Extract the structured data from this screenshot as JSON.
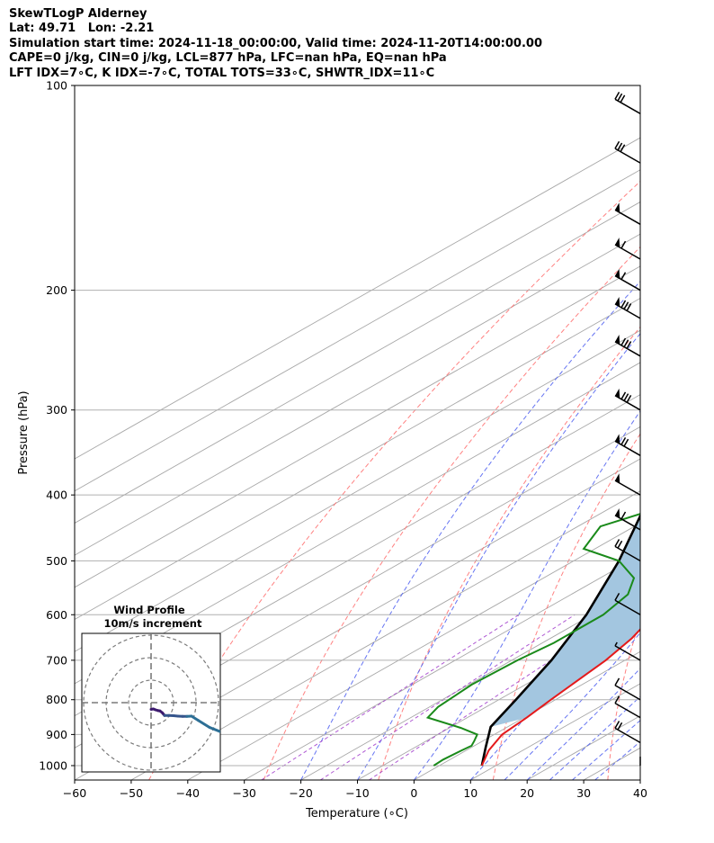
{
  "header": {
    "line1": "SkewTLogP Alderney",
    "line2": "Lat: 49.71   Lon: -2.21",
    "line3": "Simulation start time: 2024-11-18_00:00:00, Valid time: 2024-11-20T14:00:00.00",
    "line4": "CAPE=0 j/kg, CIN=0 j/kg, LCL=877 hPa, LFC=nan hPa, EQ=nan hPa",
    "line5": "LFT IDX=7∘C, K IDX=-7∘C, TOTAL TOTS=33∘C, SHWTR_IDX=11∘C"
  },
  "chart_data": {
    "type": "line",
    "chart_kind": "skew-t log-p",
    "xlabel": "Temperature (∘C)",
    "ylabel": "Pressure (hPa)",
    "xlim": [
      -60,
      40
    ],
    "ylim": [
      1050,
      100
    ],
    "y_scale": "log",
    "x_ticks": [
      -60,
      -50,
      -40,
      -30,
      -20,
      -10,
      0,
      10,
      20,
      30,
      40
    ],
    "x_tick_labels": [
      "−60",
      "−50",
      "−40",
      "−30",
      "−20",
      "−10",
      "0",
      "10",
      "20",
      "30",
      "40"
    ],
    "y_ticks": [
      100,
      200,
      300,
      400,
      500,
      600,
      700,
      800,
      900,
      1000
    ],
    "y_tick_labels": [
      "100",
      "200",
      "300",
      "400",
      "500",
      "600",
      "700",
      "800",
      "900",
      "1000"
    ],
    "grid": true,
    "colors": {
      "temperature": "#e41a1c",
      "dewpoint": "#1a8a1a",
      "parcel": "#000000",
      "cape_fill": "#a3c6e0",
      "dry_adiabat": "#ff6b6b",
      "moist_adiabat": "#4a5cf0",
      "mixing_ratio": "#9b30c8",
      "isotherm": "#a8a8a8"
    },
    "series": [
      {
        "key": "temperature",
        "points": [
          {
            "p": 1000,
            "t": 7.5
          },
          {
            "p": 950,
            "t": 4.0
          },
          {
            "p": 900,
            "t": 1.4
          },
          {
            "p": 850,
            "t": 0.5
          },
          {
            "p": 800,
            "t": -0.8
          },
          {
            "p": 700,
            "t": -3.4
          },
          {
            "p": 650,
            "t": -5.6
          },
          {
            "p": 600,
            "t": -9.0
          },
          {
            "p": 570,
            "t": -11.0
          },
          {
            "p": 550,
            "t": -10.6
          },
          {
            "p": 500,
            "t": -8.3
          },
          {
            "p": 450,
            "t": -3.2
          },
          {
            "p": 400,
            "t": 1.0
          },
          {
            "p": 350,
            "t": 4.0
          },
          {
            "p": 320,
            "t": 4.0
          },
          {
            "p": 300,
            "t": 2.6
          },
          {
            "p": 260,
            "t": -0.8
          },
          {
            "p": 240,
            "t": -5.3
          },
          {
            "p": 225,
            "t": -9.0
          },
          {
            "p": 210,
            "t": -10.0
          },
          {
            "p": 190,
            "t": -10.5
          },
          {
            "p": 170,
            "t": -11.3
          },
          {
            "p": 150,
            "t": -11.5
          },
          {
            "p": 130,
            "t": -10.5
          },
          {
            "p": 115,
            "t": -10.2
          },
          {
            "p": 100,
            "t": -11.2
          }
        ]
      },
      {
        "key": "dewpoint",
        "points": [
          {
            "p": 1000,
            "t": -1.0
          },
          {
            "p": 980,
            "t": -1.2
          },
          {
            "p": 950,
            "t": -0.8
          },
          {
            "p": 935,
            "t": -0.5
          },
          {
            "p": 920,
            "t": -1.5
          },
          {
            "p": 900,
            "t": -3.0
          },
          {
            "p": 880,
            "t": -8.0
          },
          {
            "p": 850,
            "t": -17.0
          },
          {
            "p": 820,
            "t": -18.5
          },
          {
            "p": 760,
            "t": -19.5
          },
          {
            "p": 700,
            "t": -19.0
          },
          {
            "p": 660,
            "t": -18.0
          },
          {
            "p": 600,
            "t": -18.0
          },
          {
            "p": 560,
            "t": -20.0
          },
          {
            "p": 530,
            "t": -24.0
          },
          {
            "p": 500,
            "t": -32.0
          },
          {
            "p": 480,
            "t": -42.0
          },
          {
            "p": 445,
            "t": -46.0
          },
          {
            "p": 410,
            "t": -40.0
          },
          {
            "p": 380,
            "t": -40.0
          },
          {
            "p": 340,
            "t": -38.0
          },
          {
            "p": 310,
            "t": -34.0
          },
          {
            "p": 290,
            "t": -40.0
          },
          {
            "p": 270,
            "t": -46.0
          },
          {
            "p": 240,
            "t": -53.0
          },
          {
            "p": 210,
            "t": -60.5
          },
          {
            "p": 200,
            "t": -65.0
          },
          {
            "p": 180,
            "t": -72.5
          },
          {
            "p": 170,
            "t": -78.5
          },
          {
            "p": 150,
            "t": -87.0
          },
          {
            "p": 140,
            "t": -89.5
          },
          {
            "p": 100,
            "t": -83.5
          }
        ]
      },
      {
        "key": "parcel",
        "points": [
          {
            "p": 1000,
            "t": 7.5
          },
          {
            "p": 940,
            "t": 2.5
          },
          {
            "p": 877,
            "t": -3.0
          },
          {
            "p": 800,
            "t": -7.0
          },
          {
            "p": 700,
            "t": -13.0
          },
          {
            "p": 600,
            "t": -21.0
          },
          {
            "p": 500,
            "t": -32.0
          },
          {
            "p": 400,
            "t": -47.0
          },
          {
            "p": 300,
            "t": -68.0
          },
          {
            "p": 250,
            "t": -82.0
          },
          {
            "p": 200,
            "t": -98.0
          },
          {
            "p": 150,
            "t": -119.0
          },
          {
            "p": 100,
            "t": -151.0
          }
        ]
      }
    ],
    "wind_barbs": [
      {
        "p": 1000,
        "style": "calm"
      },
      {
        "p": 925,
        "style": "two_full"
      },
      {
        "p": 850,
        "style": "one_full"
      },
      {
        "p": 800,
        "style": "one_full"
      },
      {
        "p": 700,
        "style": "one_half"
      },
      {
        "p": 600,
        "style": "one_full"
      },
      {
        "p": 500,
        "style": "two_full"
      },
      {
        "p": 450,
        "style": "pennant_one"
      },
      {
        "p": 400,
        "style": "pennant"
      },
      {
        "p": 350,
        "style": "pennant_two"
      },
      {
        "p": 300,
        "style": "pennant_three"
      },
      {
        "p": 250,
        "style": "pennant_three"
      },
      {
        "p": 220,
        "style": "pennant_three"
      },
      {
        "p": 200,
        "style": "pennant_one"
      },
      {
        "p": 180,
        "style": "pennant_one"
      },
      {
        "p": 160,
        "style": "pennant"
      },
      {
        "p": 130,
        "style": "three_full"
      },
      {
        "p": 110,
        "style": "three_full"
      }
    ],
    "hodograph": {
      "title_line1": "Wind Profile",
      "title_line2": "10m/s increment",
      "ring_increment_ms": 10,
      "rings": 3,
      "points": [
        {
          "u": 0,
          "v": -3
        },
        {
          "u": 1,
          "v": -2.8
        },
        {
          "u": 2,
          "v": -3.2
        },
        {
          "u": 3,
          "v": -3.5
        },
        {
          "u": 4,
          "v": -3.7
        },
        {
          "u": 5,
          "v": -4.5
        },
        {
          "u": 6,
          "v": -5.7
        },
        {
          "u": 8,
          "v": -5.7
        },
        {
          "u": 10,
          "v": -5.8
        },
        {
          "u": 12,
          "v": -6.0
        },
        {
          "u": 14,
          "v": -6.1
        },
        {
          "u": 16,
          "v": -6.1
        },
        {
          "u": 18,
          "v": -6.0
        },
        {
          "u": 21,
          "v": -7.9
        },
        {
          "u": 26,
          "v": -11.0
        },
        {
          "u": 32,
          "v": -13.4
        },
        {
          "u": 39,
          "v": -16.3
        }
      ]
    }
  }
}
